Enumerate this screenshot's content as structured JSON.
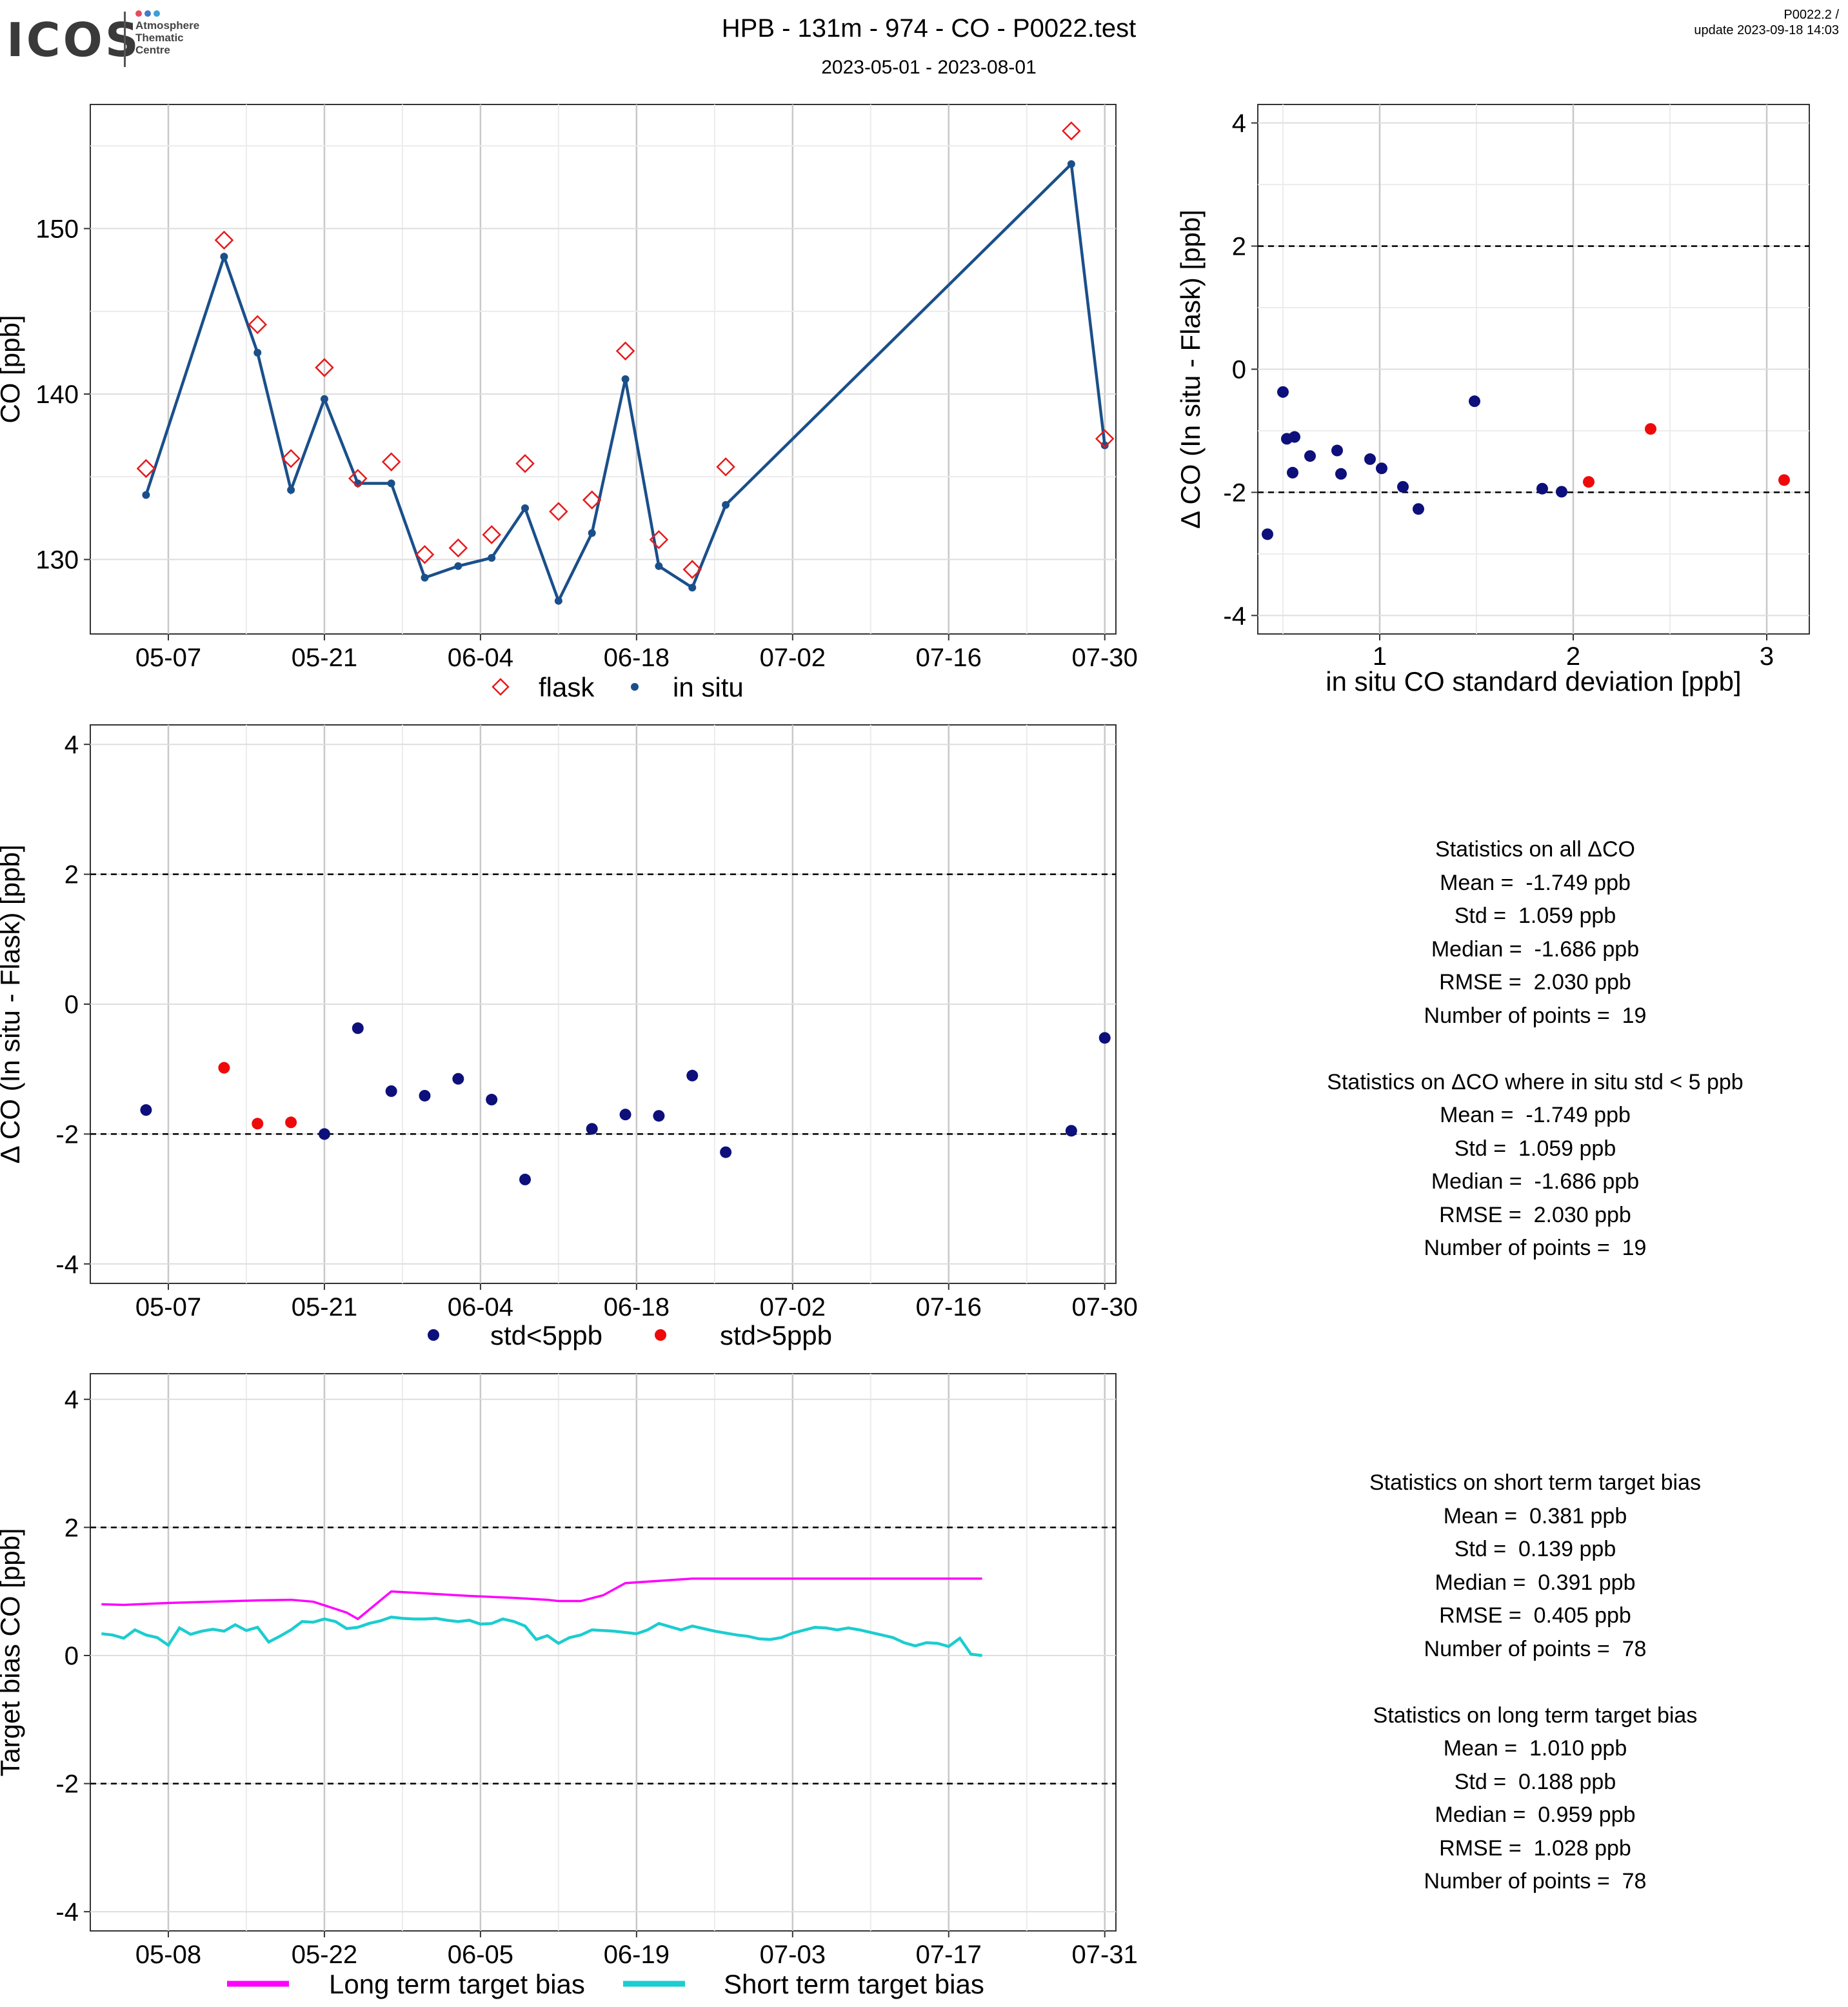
{
  "header": {
    "logo_word": "ICOS",
    "logo_sub": [
      "Atmosphere",
      "Thematic",
      "Centre"
    ],
    "title": "HPB - 131m - 974 - CO - P0022.test",
    "subtitle": "2023-05-01 - 2023-08-01",
    "version": "P0022.2 /",
    "update": "update  2023-09-18 14:03"
  },
  "colors": {
    "flask": "#e8191b",
    "insitu": "#1a4f8a",
    "std_lt5": "#0d0f7a",
    "std_gt5": "#ee0a0a",
    "long_term": "#ff00ff",
    "short_term": "#1bcdd0"
  },
  "chart_data": [
    {
      "id": "co_timeseries",
      "type": "line",
      "ylabel": "CO [ppb]",
      "x_ticks": [
        "05-07",
        "05-21",
        "06-04",
        "06-18",
        "07-02",
        "07-16",
        "07-30"
      ],
      "y_ticks": [
        "130",
        "140",
        "150"
      ],
      "ylim": [
        125.5,
        157.5
      ],
      "xlim": [
        "2023-04-30",
        "2023-07-31"
      ],
      "legend": [
        "flask",
        "in situ"
      ],
      "legend_position": "bottom",
      "x": [
        "2023-05-05",
        "2023-05-12",
        "2023-05-15",
        "2023-05-18",
        "2023-05-21",
        "2023-05-24",
        "2023-05-27",
        "2023-05-30",
        "2023-06-02",
        "2023-06-05",
        "2023-06-08",
        "2023-06-11",
        "2023-06-14",
        "2023-06-17",
        "2023-06-20",
        "2023-06-23",
        "2023-06-26",
        "2023-07-27",
        "2023-07-30"
      ],
      "series": [
        {
          "name": "flask",
          "marker": "diamond",
          "values": [
            135.5,
            149.3,
            144.2,
            136.1,
            141.6,
            134.9,
            135.9,
            130.3,
            130.7,
            131.5,
            135.8,
            132.9,
            133.6,
            142.6,
            131.2,
            129.4,
            135.6,
            155.9,
            137.3
          ]
        },
        {
          "name": "in situ",
          "marker": "point-line",
          "values": [
            133.9,
            148.3,
            142.5,
            134.2,
            139.7,
            134.6,
            134.6,
            128.9,
            129.6,
            130.1,
            133.1,
            127.5,
            131.6,
            140.9,
            129.6,
            128.3,
            133.3,
            153.9,
            136.9
          ]
        }
      ]
    },
    {
      "id": "delta_vs_std",
      "type": "scatter",
      "xlabel": "in situ CO standard deviation [ppb]",
      "ylabel": "Δ CO (In situ - Flask) [ppb]",
      "x_ticks": [
        "1",
        "2",
        "3"
      ],
      "y_ticks": [
        "-4",
        "-2",
        "0",
        "2",
        "4"
      ],
      "xlim": [
        0.37,
        3.22
      ],
      "ylim": [
        -4.3,
        4.3
      ],
      "hlines": [
        -2,
        2
      ],
      "series": [
        {
          "name": "std<5ppb",
          "x": [
            0.42,
            0.5,
            0.52,
            0.55,
            0.56,
            0.64,
            0.78,
            0.8,
            0.95,
            1.01,
            1.12,
            1.2,
            1.49,
            1.84,
            1.94
          ],
          "y": [
            -2.68,
            -0.37,
            -1.13,
            -1.68,
            -1.1,
            -1.41,
            -1.32,
            -1.7,
            -1.46,
            -1.61,
            -1.91,
            -2.27,
            -0.52,
            -1.94,
            -1.99
          ]
        },
        {
          "name": "std>5ppb",
          "x": [
            2.08,
            2.4,
            3.09
          ],
          "y": [
            -1.83,
            -0.97,
            -1.8
          ]
        }
      ]
    },
    {
      "id": "delta_timeseries",
      "type": "scatter",
      "ylabel": "Δ CO (In situ - Flask) [ppb]",
      "x_ticks": [
        "05-07",
        "05-21",
        "06-04",
        "06-18",
        "07-02",
        "07-16",
        "07-30"
      ],
      "y_ticks": [
        "-4",
        "-2",
        "0",
        "2",
        "4"
      ],
      "xlim": [
        "2023-04-30",
        "2023-07-31"
      ],
      "ylim": [
        -4.3,
        4.3
      ],
      "hlines": [
        -2,
        2
      ],
      "legend_position": "bottom",
      "series": [
        {
          "name": "std<5ppb",
          "x": [
            "2023-05-05",
            "2023-05-21",
            "2023-05-24",
            "2023-05-27",
            "2023-05-30",
            "2023-06-02",
            "2023-06-05",
            "2023-06-08",
            "2023-06-14",
            "2023-06-17",
            "2023-06-20",
            "2023-06-23",
            "2023-06-26",
            "2023-07-27",
            "2023-07-30"
          ],
          "y": [
            -1.63,
            -2.0,
            -0.37,
            -1.34,
            -1.41,
            -1.15,
            -1.47,
            -2.7,
            -1.92,
            -1.7,
            -1.72,
            -1.1,
            -2.28,
            -1.95,
            -0.52
          ]
        },
        {
          "name": "std>5ppb",
          "x": [
            "2023-05-12",
            "2023-05-15",
            "2023-05-18"
          ],
          "y": [
            -0.98,
            -1.84,
            -1.82
          ]
        }
      ]
    },
    {
      "id": "target_bias",
      "type": "line",
      "ylabel": "Target bias CO [ppb]",
      "x_ticks": [
        "05-08",
        "05-22",
        "06-05",
        "06-19",
        "07-03",
        "07-17",
        "07-31"
      ],
      "y_ticks": [
        "-4",
        "-2",
        "0",
        "2",
        "4"
      ],
      "xlim": [
        "2023-05-01",
        "2023-08-01"
      ],
      "ylim": [
        -4.3,
        4.4
      ],
      "hlines": [
        -2,
        2
      ],
      "legend_position": "bottom",
      "series": [
        {
          "name": "Long term target bias",
          "x": [
            "2023-05-02",
            "2023-05-04",
            "2023-05-08",
            "2023-05-12",
            "2023-05-16",
            "2023-05-19",
            "2023-05-21",
            "2023-05-24",
            "2023-05-25",
            "2023-05-28",
            "2023-06-01",
            "2023-06-04",
            "2023-06-08",
            "2023-06-11",
            "2023-06-12",
            "2023-06-14",
            "2023-06-16",
            "2023-06-18",
            "2023-06-24",
            "2023-07-01",
            "2023-07-10",
            "2023-07-20"
          ],
          "values": [
            0.8,
            0.79,
            0.82,
            0.84,
            0.86,
            0.87,
            0.84,
            0.67,
            0.57,
            1.0,
            0.96,
            0.93,
            0.9,
            0.87,
            0.85,
            0.85,
            0.94,
            1.13,
            1.2,
            1.2,
            1.2,
            1.2
          ]
        },
        {
          "name": "Short term target bias",
          "x": [
            "2023-05-02",
            "2023-05-03",
            "2023-05-04",
            "2023-05-05",
            "2023-05-06",
            "2023-05-07",
            "2023-05-08",
            "2023-05-09",
            "2023-05-10",
            "2023-05-11",
            "2023-05-12",
            "2023-05-13",
            "2023-05-14",
            "2023-05-15",
            "2023-05-16",
            "2023-05-17",
            "2023-05-18",
            "2023-05-19",
            "2023-05-20",
            "2023-05-21",
            "2023-05-22",
            "2023-05-23",
            "2023-05-24",
            "2023-05-25",
            "2023-05-26",
            "2023-05-27",
            "2023-05-28",
            "2023-05-29",
            "2023-05-30",
            "2023-05-31",
            "2023-06-01",
            "2023-06-02",
            "2023-06-03",
            "2023-06-04",
            "2023-06-05",
            "2023-06-06",
            "2023-06-07",
            "2023-06-08",
            "2023-06-09",
            "2023-06-10",
            "2023-06-11",
            "2023-06-12",
            "2023-06-13",
            "2023-06-14",
            "2023-06-15",
            "2023-06-16",
            "2023-06-17",
            "2023-06-18",
            "2023-06-19",
            "2023-06-20",
            "2023-06-21",
            "2023-06-22",
            "2023-06-23",
            "2023-06-24",
            "2023-06-25",
            "2023-06-26",
            "2023-06-27",
            "2023-06-28",
            "2023-06-29",
            "2023-06-30",
            "2023-07-01",
            "2023-07-02",
            "2023-07-03",
            "2023-07-05",
            "2023-07-06",
            "2023-07-07",
            "2023-07-08",
            "2023-07-09",
            "2023-07-10",
            "2023-07-12",
            "2023-07-13",
            "2023-07-14",
            "2023-07-15",
            "2023-07-16",
            "2023-07-17",
            "2023-07-18",
            "2023-07-19",
            "2023-07-20"
          ],
          "values": [
            0.34,
            0.32,
            0.27,
            0.4,
            0.32,
            0.28,
            0.16,
            0.43,
            0.33,
            0.38,
            0.41,
            0.38,
            0.48,
            0.39,
            0.44,
            0.21,
            0.3,
            0.4,
            0.53,
            0.52,
            0.57,
            0.53,
            0.42,
            0.44,
            0.5,
            0.54,
            0.6,
            0.58,
            0.57,
            0.57,
            0.58,
            0.55,
            0.53,
            0.55,
            0.49,
            0.5,
            0.57,
            0.53,
            0.46,
            0.25,
            0.31,
            0.19,
            0.28,
            0.32,
            0.4,
            0.39,
            0.38,
            0.36,
            0.34,
            0.4,
            0.5,
            0.45,
            0.4,
            0.46,
            0.42,
            0.38,
            0.35,
            0.32,
            0.3,
            0.26,
            0.25,
            0.28,
            0.35,
            0.44,
            0.43,
            0.4,
            0.43,
            0.4,
            0.36,
            0.28,
            0.2,
            0.15,
            0.2,
            0.19,
            0.14,
            0.27,
            0.02,
            0.0
          ]
        }
      ]
    }
  ],
  "stats_delta": [
    "Statistics on all ΔCO",
    "Mean =  -1.749 ppb",
    "Std =  1.059 ppb",
    "Median =  -1.686 ppb",
    "RMSE =  2.030 ppb",
    "Number of points =  19",
    "",
    "Statistics on ΔCO where in situ std < 5 ppb",
    "Mean =  -1.749 ppb",
    "Std =  1.059 ppb",
    "Median =  -1.686 ppb",
    "RMSE =  2.030 ppb",
    "Number of points =  19"
  ],
  "stats_bias": [
    "Statistics on short term target bias",
    "Mean =  0.381 ppb",
    "Std =  0.139 ppb",
    "Median =  0.391 ppb",
    "RMSE =  0.405 ppb",
    "Number of points =  78",
    "",
    "Statistics on long term target bias",
    "Mean =  1.010 ppb",
    "Std =  0.188 ppb",
    "Median =  0.959 ppb",
    "RMSE =  1.028 ppb",
    "Number of points =  78"
  ]
}
